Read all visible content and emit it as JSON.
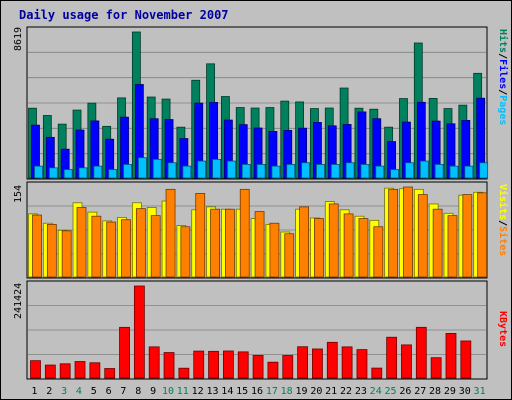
{
  "chart_data": [
    {
      "type": "bar",
      "title": "Daily usage for November 2007",
      "ymax_label": "8619",
      "right_labels": [
        "Pages",
        "/",
        "Files",
        "/",
        "Hits"
      ],
      "categories": [
        "1",
        "2",
        "3",
        "4",
        "5",
        "6",
        "7",
        "8",
        "9",
        "10",
        "11",
        "12",
        "13",
        "14",
        "15",
        "16",
        "17",
        "18",
        "19",
        "20",
        "21",
        "22",
        "23",
        "24",
        "25",
        "26",
        "27",
        "28",
        "29",
        "30",
        "31"
      ],
      "weekend_days": [
        "3",
        "4",
        "10",
        "11",
        "17",
        "18",
        "24",
        "25",
        "31"
      ],
      "ylim": [
        0,
        8619
      ],
      "series": [
        {
          "name": "Hits",
          "color": "#00805c",
          "values": [
            4120,
            3690,
            3180,
            4010,
            4420,
            3050,
            4730,
            8619,
            4780,
            4660,
            3000,
            5770,
            6740,
            4810,
            4160,
            4130,
            4160,
            4540,
            4490,
            4100,
            4130,
            5310,
            4120,
            4060,
            3000,
            4690,
            7970,
            4700,
            4100,
            4300,
            6180
          ]
        },
        {
          "name": "Files",
          "color": "#0000ff",
          "values": [
            3120,
            2400,
            1700,
            2830,
            3370,
            2290,
            3590,
            5520,
            3500,
            3450,
            2330,
            4420,
            4460,
            3420,
            3150,
            2950,
            2750,
            2810,
            2940,
            3280,
            3080,
            3160,
            3900,
            3500,
            2150,
            3300,
            4470,
            3360,
            3200,
            3400,
            4710
          ]
        },
        {
          "name": "Pages",
          "color": "#00c0ff",
          "values": [
            700,
            600,
            500,
            600,
            700,
            500,
            800,
            1200,
            1100,
            900,
            700,
            1000,
            1100,
            1000,
            800,
            800,
            700,
            800,
            900,
            800,
            800,
            900,
            800,
            700,
            500,
            900,
            1000,
            800,
            700,
            700,
            900
          ]
        }
      ]
    },
    {
      "type": "bar",
      "ymax_label": "154",
      "right_labels": [
        "Sites",
        "/",
        "Visits"
      ],
      "categories": [
        "1",
        "2",
        "3",
        "4",
        "5",
        "6",
        "7",
        "8",
        "9",
        "10",
        "11",
        "12",
        "13",
        "14",
        "15",
        "16",
        "17",
        "18",
        "19",
        "20",
        "21",
        "22",
        "23",
        "24",
        "25",
        "26",
        "27",
        "28",
        "29",
        "30",
        "31"
      ],
      "ylim": [
        0,
        154
      ],
      "series": [
        {
          "name": "Visits",
          "color": "#ffff00",
          "values": [
            108,
            92,
            80,
            127,
            111,
            96,
            102,
            127,
            119,
            130,
            88,
            115,
            120,
            116,
            116,
            100,
            90,
            77,
            116,
            101,
            129,
            115,
            104,
            97,
            152,
            151,
            150,
            125,
            109,
            140,
            145
          ]
        },
        {
          "name": "Sites",
          "color": "#ff8000",
          "values": [
            106,
            90,
            79,
            119,
            104,
            94,
            98,
            117,
            105,
            150,
            86,
            143,
            116,
            116,
            150,
            112,
            92,
            74,
            120,
            100,
            125,
            108,
            100,
            86,
            150,
            154,
            141,
            116,
            105,
            141,
            144
          ]
        }
      ]
    },
    {
      "type": "bar",
      "ymax_label": "241424",
      "right_labels": [
        "KBytes"
      ],
      "categories": [
        "1",
        "2",
        "3",
        "4",
        "5",
        "6",
        "7",
        "8",
        "9",
        "10",
        "11",
        "12",
        "13",
        "14",
        "15",
        "16",
        "17",
        "18",
        "19",
        "20",
        "21",
        "22",
        "23",
        "24",
        "25",
        "26",
        "27",
        "28",
        "29",
        "30",
        "31"
      ],
      "ylim": [
        0,
        241424
      ],
      "series": [
        {
          "name": "KBytes",
          "color": "#ff0000",
          "values": [
            45500,
            34000,
            37300,
            43300,
            40000,
            24900,
            133000,
            241424,
            81700,
            66800,
            25700,
            70600,
            70000,
            70900,
            68600,
            59200,
            41500,
            59100,
            82100,
            76200,
            93700,
            81700,
            74600,
            26000,
            107000,
            86900,
            133000,
            53300,
            117000,
            97200,
            0
          ]
        }
      ]
    }
  ],
  "colors": {
    "border_outer": "#000000",
    "panel_bg": "#c0c0c0",
    "gridline": "#808080",
    "weekday_label": "#000000",
    "weekend_label": "#00805c"
  }
}
